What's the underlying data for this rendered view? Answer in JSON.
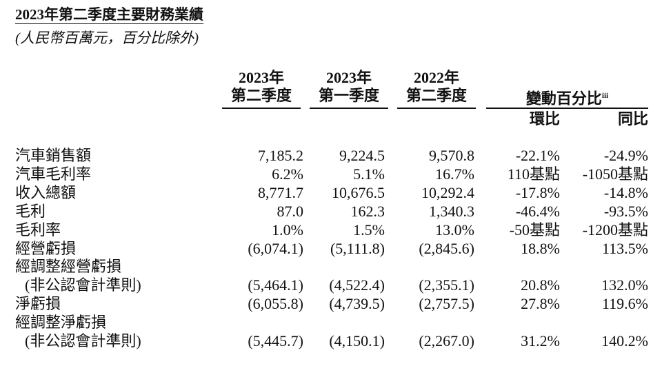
{
  "header": {
    "title": "2023年第二季度主要財務業績",
    "subtitle": "(人民幣百萬元，百分比除外)"
  },
  "table": {
    "columns": [
      [
        "2023年",
        "第二季度"
      ],
      [
        "2023年",
        "第一季度"
      ],
      [
        "2022年",
        "第二季度"
      ]
    ],
    "group": {
      "text": "變動百分比",
      "note": "iii",
      "columns": [
        "環比",
        "同比"
      ]
    },
    "rows": [
      {
        "label": "汽車銷售額",
        "values": [
          "7,185.2",
          "9,224.5",
          "9,570.8",
          "-22.1%",
          "-24.9%"
        ]
      },
      {
        "label": "汽車毛利率",
        "values": [
          "6.2%",
          "5.1%",
          "16.7%",
          "110基點",
          "-1050基點"
        ]
      },
      {
        "label": "收入總額",
        "values": [
          "8,771.7",
          "10,676.5",
          "10,292.4",
          "-17.8%",
          "-14.8%"
        ]
      },
      {
        "label": "毛利",
        "values": [
          "87.0",
          "162.3",
          "1,340.3",
          "-46.4%",
          "-93.5%"
        ]
      },
      {
        "label": "毛利率",
        "values": [
          "1.0%",
          "1.5%",
          "13.0%",
          "-50基點",
          "-1200基點"
        ]
      },
      {
        "label": "經營虧損",
        "values": [
          "(6,074.1)",
          "(5,111.8)",
          "(2,845.6)",
          "18.8%",
          "113.5%"
        ]
      },
      {
        "label": "經調整經營虧損"
      },
      {
        "label": "(非公認會計準則)",
        "indent": true,
        "values": [
          "(5,464.1)",
          "(4,522.4)",
          "(2,355.1)",
          "20.8%",
          "132.0%"
        ]
      },
      {
        "label": "淨虧損",
        "values": [
          "(6,055.8)",
          "(4,739.5)",
          "(2,757.5)",
          "27.8%",
          "119.6%"
        ]
      },
      {
        "label": "經調整淨虧損"
      },
      {
        "label": "(非公認會計準則)",
        "indent": true,
        "values": [
          "(5,445.7)",
          "(4,150.1)",
          "(2,267.0)",
          "31.2%",
          "140.2%"
        ]
      }
    ]
  }
}
